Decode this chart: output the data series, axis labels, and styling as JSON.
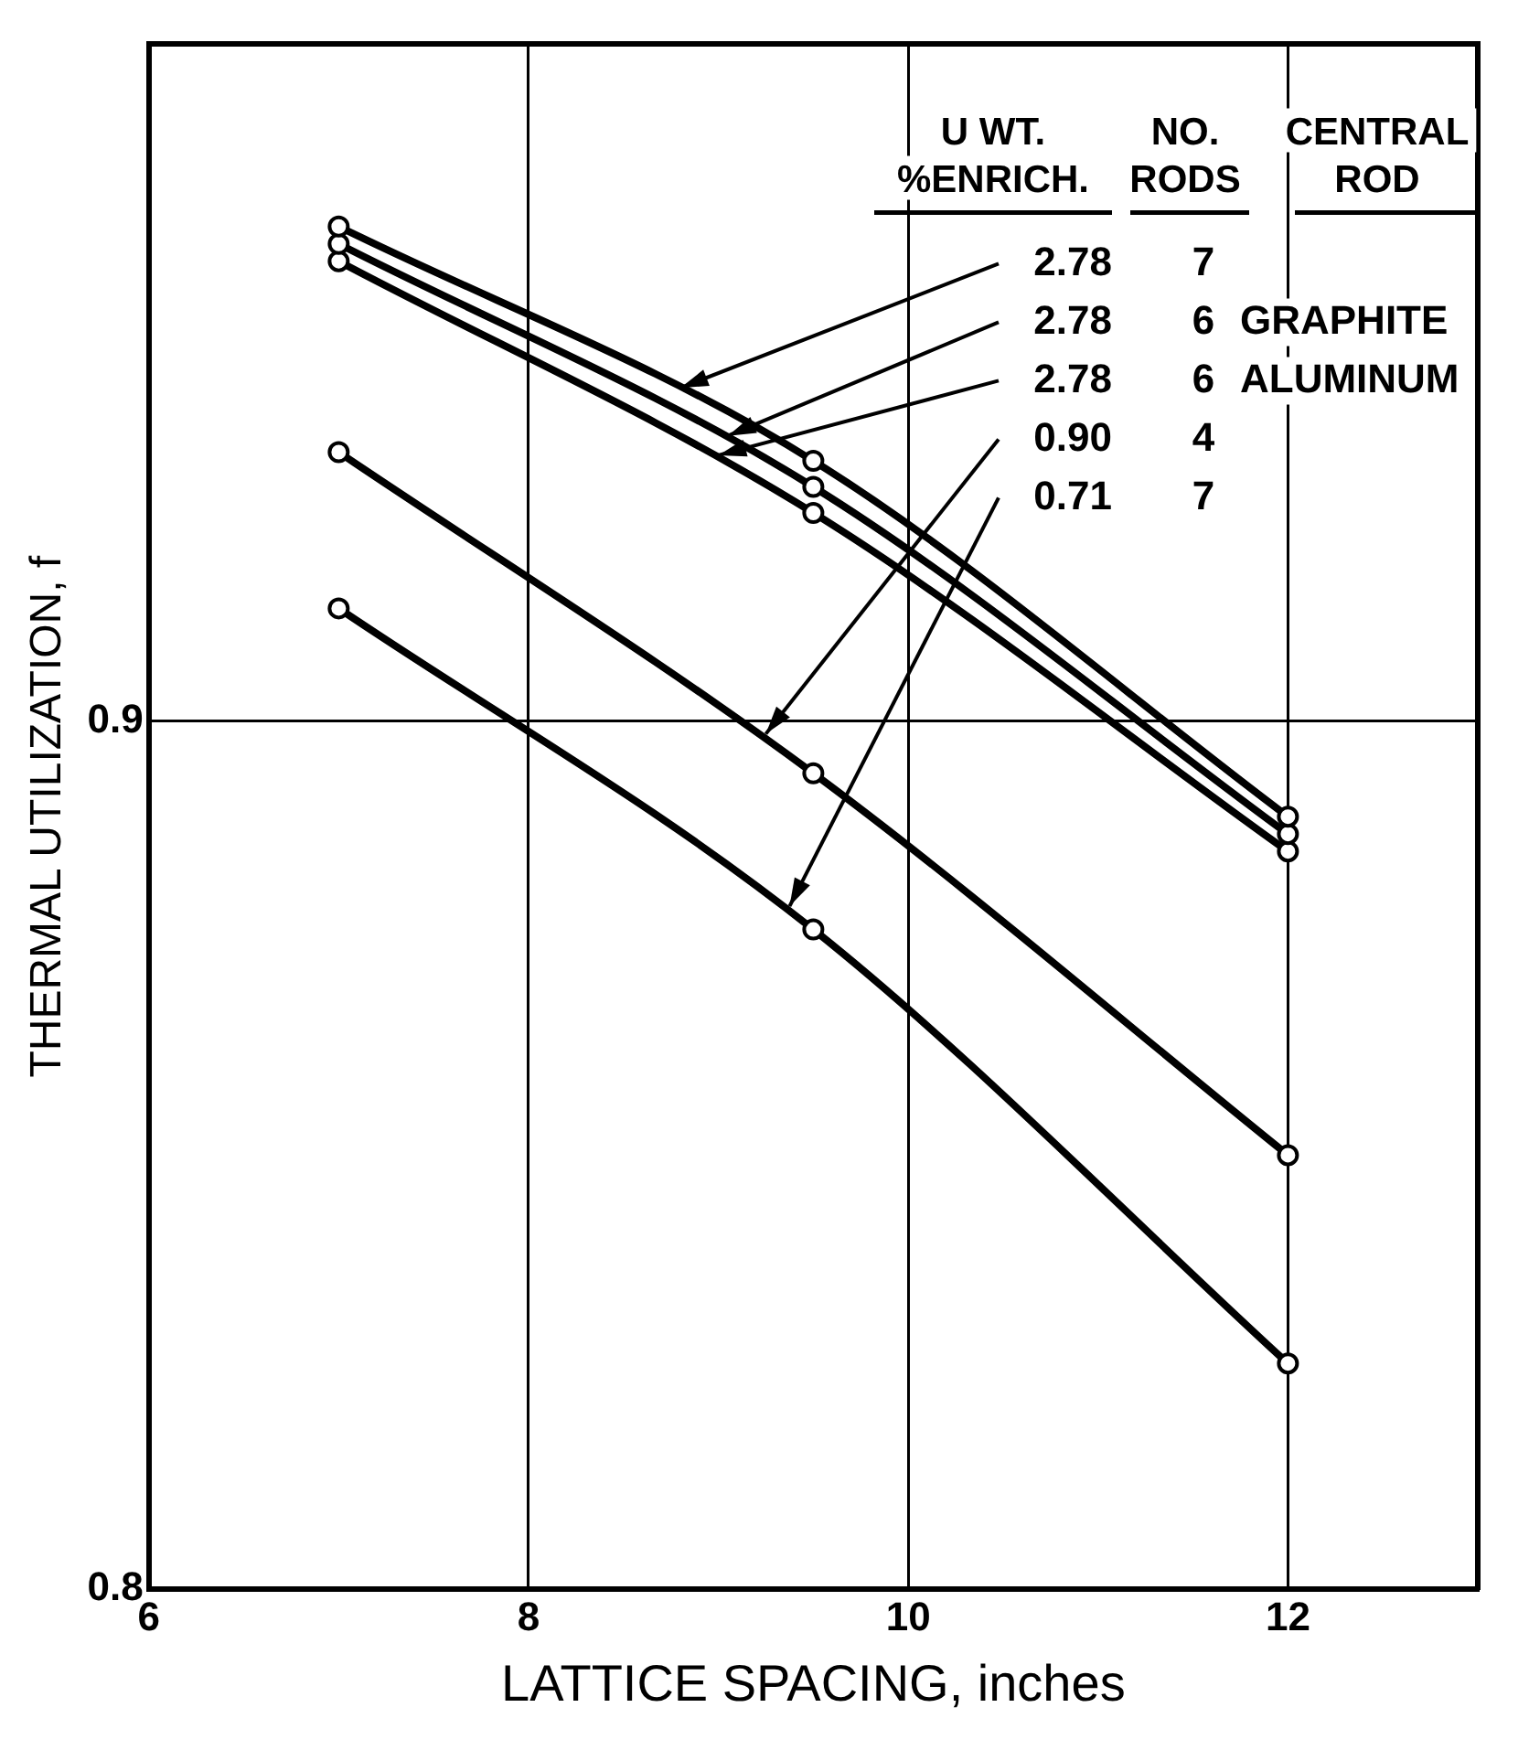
{
  "chart_data": {
    "type": "line",
    "xlabel": "LATTICE SPACING, inches",
    "ylabel": "THERMAL UTILIZATION, f",
    "x": [
      7,
      9.5,
      12
    ],
    "series": [
      {
        "name": "2.78 7",
        "color": "#000000",
        "values": [
          0.957,
          0.93,
          0.889
        ]
      },
      {
        "name": "2.78 6 GRAPHITE",
        "color": "#000000",
        "values": [
          0.955,
          0.927,
          0.887
        ]
      },
      {
        "name": "2.78 6 ALUMINUM",
        "color": "#000000",
        "values": [
          0.953,
          0.924,
          0.885
        ]
      },
      {
        "name": "0.90 4",
        "color": "#000000",
        "values": [
          0.931,
          0.894,
          0.85
        ]
      },
      {
        "name": "0.71 7",
        "color": "#000000",
        "values": [
          0.913,
          0.876,
          0.826
        ]
      }
    ],
    "annotations": [
      "U WT.",
      "%ENRICH.",
      "NO.",
      "RODS",
      "CENTRAL",
      "ROD"
    ],
    "xlim": [
      6,
      13
    ],
    "xticks": [
      6,
      8,
      10,
      12
    ],
    "ylim": [
      0.8,
      0.978
    ],
    "yticks": [
      0.8,
      0.9
    ],
    "grid": true,
    "marker": "circle",
    "line_style": "solid"
  }
}
